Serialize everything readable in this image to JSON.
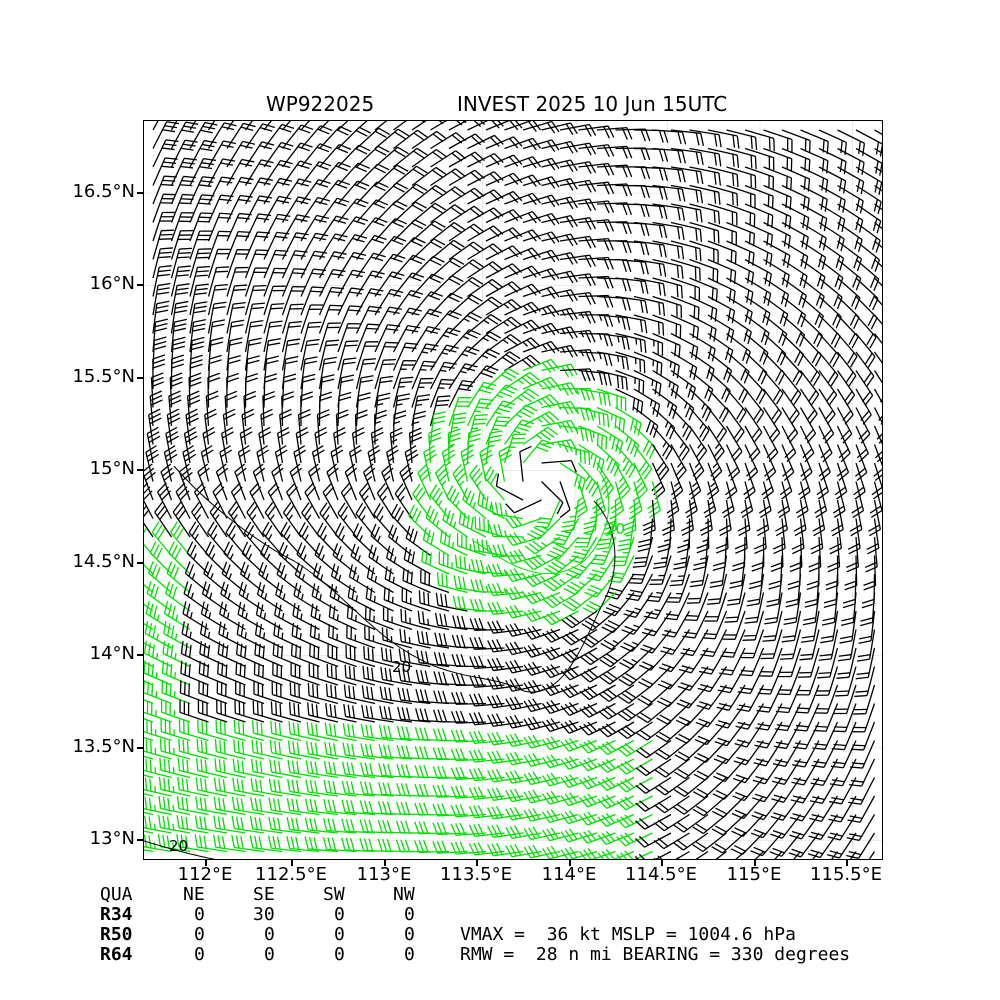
{
  "title_left": "WP922025",
  "title_right": "INVEST 2025 10 Jun 15UTC",
  "y_labels": [
    "16.5°N",
    "16°N",
    "15.5°N",
    "15°N",
    "14.5°N",
    "14°N",
    "13.5°N",
    "13°N"
  ],
  "x_labels": [
    "112°E",
    "112.5°E",
    "113°E",
    "113.5°E",
    "114°E",
    "114.5°E",
    "115°E",
    "115.5°E"
  ],
  "contour_label": "20",
  "colors": {
    "strong_wind": "#00e000",
    "weak_wind": "#000000",
    "contour": "#000000"
  },
  "map": {
    "lon_range": [
      111.67,
      115.67
    ],
    "lat_range": [
      12.89,
      16.89
    ],
    "center": {
      "lat": 14.93,
      "lon": 113.8
    },
    "calm_lon_min": 115.3,
    "calm_lat_min": 15.9
  },
  "quadrants": {
    "header": [
      "QUA",
      "NE",
      "SE",
      "SW",
      "NW"
    ],
    "rows": [
      {
        "label": "R34",
        "values": [
          "0",
          "30",
          "0",
          "0"
        ]
      },
      {
        "label": "R50",
        "values": [
          "0",
          "0",
          "0",
          "0"
        ]
      },
      {
        "label": "R64",
        "values": [
          "0",
          "0",
          "0",
          "0"
        ]
      }
    ]
  },
  "stats": {
    "line1": "VMAX =  36 kt MSLP = 1004.6 hPa",
    "line2": "RMW =  28 n mi BEARING = 330 degrees"
  }
}
